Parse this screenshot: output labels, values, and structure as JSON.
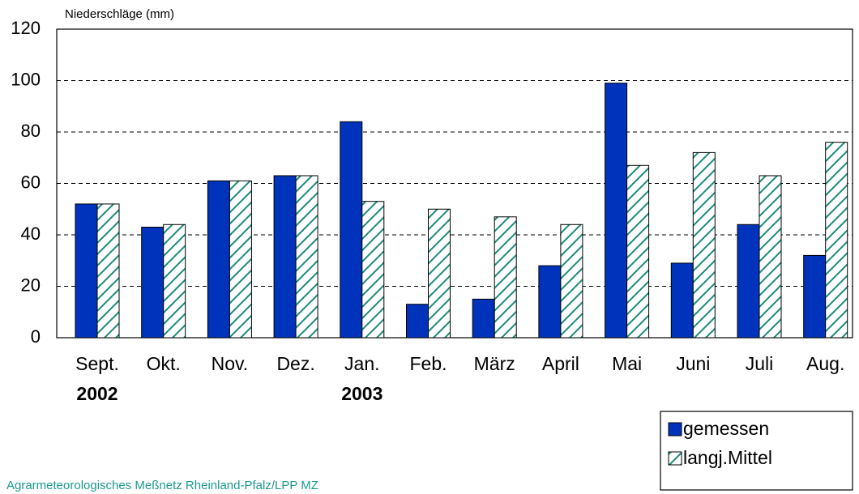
{
  "chart_data": {
    "type": "bar",
    "y_label": "Niederschläge (mm)",
    "categories": [
      "Sept.",
      "Okt.",
      "Nov.",
      "Dez.",
      "Jan.",
      "Feb.",
      "März",
      "April",
      "Mai",
      "Juni",
      "Juli",
      "Aug."
    ],
    "year_labels": [
      "2002",
      null,
      null,
      null,
      "2003",
      null,
      null,
      null,
      null,
      null,
      null,
      null
    ],
    "series": [
      {
        "name": "gemessen",
        "color": "#0033bb",
        "values": [
          52,
          43,
          61,
          63,
          84,
          13,
          15,
          28,
          99,
          29,
          44,
          32
        ]
      },
      {
        "name": "langj.Mittel",
        "color": "#1a8a7a",
        "hatch": true,
        "values": [
          52,
          44,
          61,
          63,
          53,
          50,
          47,
          44,
          67,
          72,
          63,
          76
        ]
      }
    ],
    "ylim": [
      0,
      120
    ],
    "yticks": [
      0,
      20,
      40,
      60,
      80,
      100,
      120
    ],
    "grid": true,
    "legend": "bottom-right",
    "source": "Agrarmeteorologisches Meßnetz Rheinland-Pfalz/LPP MZ"
  }
}
